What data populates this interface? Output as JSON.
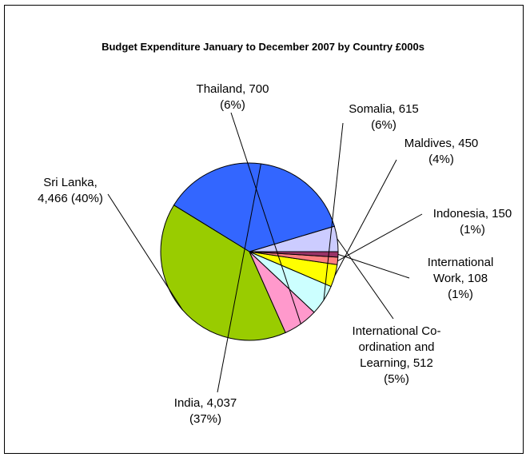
{
  "chart_data": {
    "type": "pie",
    "title": "Budget Expenditure January to December 2007 by Country £000s",
    "start_angle_deg": 0,
    "direction": "counterclockwise",
    "slices": [
      {
        "name": "International Co-ordination and Learning",
        "value": 512,
        "percent": "5%",
        "color": "#ccccff",
        "label_lines": [
          "International Co-",
          "ordination and",
          "Learning, 512",
          "(5%)"
        ]
      },
      {
        "name": "India",
        "value": 4037,
        "percent": "37%",
        "color": "#3366ff",
        "label_lines": [
          "India, 4,037",
          "(37%)"
        ]
      },
      {
        "name": "Sri Lanka",
        "value": 4466,
        "percent": "40%",
        "color": "#99cc00",
        "label_lines": [
          "Sri Lanka,",
          "4,466 (40%)"
        ]
      },
      {
        "name": "Thailand",
        "value": 700,
        "percent": "6%",
        "color": "#ff99cc",
        "label_lines": [
          "Thailand, 700",
          "(6%)"
        ]
      },
      {
        "name": "Somalia",
        "value": 615,
        "percent": "6%",
        "color": "#ccffff",
        "label_lines": [
          "Somalia, 615",
          "(6%)"
        ]
      },
      {
        "name": "Maldives",
        "value": 450,
        "percent": "4%",
        "color": "#ffff00",
        "label_lines": [
          "Maldives, 450",
          "(4%)"
        ]
      },
      {
        "name": "Indonesia",
        "value": 150,
        "percent": "1%",
        "color": "#ff8080",
        "label_lines": [
          "Indonesia, 150",
          "(1%)"
        ]
      },
      {
        "name": "International Work",
        "value": 108,
        "percent": "1%",
        "color": "#993366",
        "label_lines": [
          "International",
          "Work, 108",
          "(1%)"
        ]
      }
    ]
  }
}
